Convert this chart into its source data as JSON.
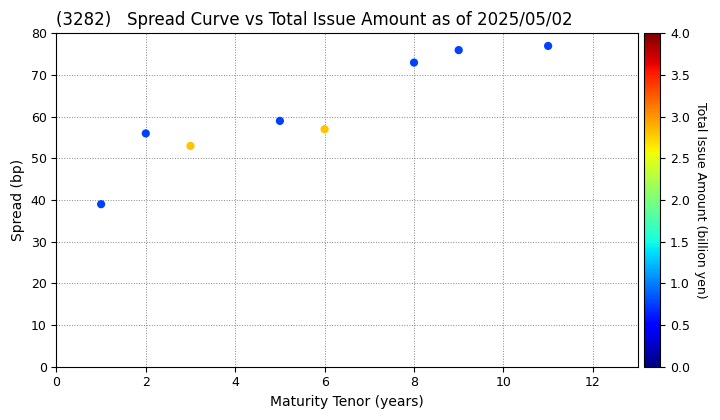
{
  "title": "(3282)   Spread Curve vs Total Issue Amount as of 2025/05/02",
  "xlabel": "Maturity Tenor (years)",
  "ylabel": "Spread (bp)",
  "colorbar_label": "Total Issue Amount (billion yen)",
  "xlim": [
    0,
    13
  ],
  "ylim": [
    0,
    80
  ],
  "xticks": [
    0,
    2,
    4,
    6,
    8,
    10,
    12
  ],
  "yticks": [
    0,
    10,
    20,
    30,
    40,
    50,
    60,
    70,
    80
  ],
  "scatter_x": [
    1,
    2,
    3,
    5,
    6,
    8,
    9,
    11
  ],
  "scatter_y": [
    39,
    56,
    53,
    59,
    57,
    73,
    76,
    77
  ],
  "scatter_amount": [
    0.75,
    0.75,
    2.8,
    0.75,
    2.8,
    0.75,
    0.75,
    0.75
  ],
  "color_min": 0.0,
  "color_max": 4.0,
  "colorbar_ticks": [
    0.0,
    0.5,
    1.0,
    1.5,
    2.0,
    2.5,
    3.0,
    3.5,
    4.0
  ],
  "marker_size": 35,
  "background_color": "#ffffff",
  "grid_color": "#888888",
  "title_fontsize": 12,
  "axis_fontsize": 10,
  "tick_fontsize": 9,
  "colorbar_fontsize": 9
}
